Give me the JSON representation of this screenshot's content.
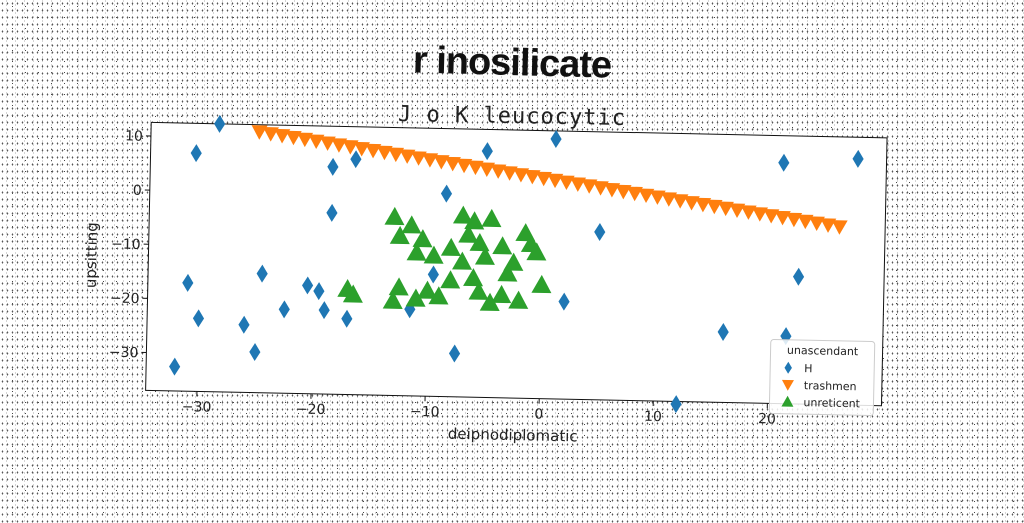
{
  "chart_data": {
    "type": "scatter",
    "title": "r inosilicate",
    "subtitle": "J o K leucocytic",
    "xlabel": "deipnodiplomatic",
    "ylabel": "upsitting",
    "xlim": [
      -34.5,
      30
    ],
    "ylim": [
      -37,
      12.5
    ],
    "xticks": [
      -30,
      -20,
      -10,
      0,
      10,
      20
    ],
    "yticks": [
      10,
      0,
      -10,
      -20,
      -30
    ],
    "grid": false,
    "legend": {
      "title": "unascendant",
      "placement": "lower-right"
    },
    "series": [
      {
        "name": "H",
        "marker": "diamond",
        "color": "#1f77b4",
        "points": [
          [
            -28.5,
            12.5
          ],
          [
            -30.5,
            7
          ],
          [
            -18.5,
            5
          ],
          [
            -16.5,
            6.5
          ],
          [
            -18.5,
            -3.5
          ],
          [
            -31,
            -17
          ],
          [
            -30,
            -23.5
          ],
          [
            -26,
            -24.5
          ],
          [
            -25,
            -29.5
          ],
          [
            -24.5,
            -15
          ],
          [
            -22.5,
            -21.5
          ],
          [
            -20.5,
            -17
          ],
          [
            -19.5,
            -18
          ],
          [
            -19,
            -21.5
          ],
          [
            -17,
            -23
          ],
          [
            -32,
            -32.5
          ],
          [
            -8.5,
            0.5
          ],
          [
            -9.5,
            -14.5
          ],
          [
            -11.5,
            -21
          ],
          [
            -7.5,
            -29
          ],
          [
            -5,
            8.5
          ],
          [
            1,
            11
          ],
          [
            2,
            -19
          ],
          [
            5,
            -6
          ],
          [
            16,
            -24
          ],
          [
            21,
            7.5
          ],
          [
            21.5,
            -24.5
          ],
          [
            22.5,
            -13.5
          ],
          [
            12,
            -37.5
          ],
          [
            27.5,
            8.5
          ]
        ]
      },
      {
        "name": "trashmen",
        "marker": "triangle-down",
        "color": "#ff7f0e",
        "points": [
          [
            -25,
            11.2
          ],
          [
            -24,
            10.9
          ],
          [
            -23,
            10.6
          ],
          [
            -22,
            10.3
          ],
          [
            -21,
            10.0
          ],
          [
            -20,
            9.7
          ],
          [
            -19,
            9.4
          ],
          [
            -18,
            9.1
          ],
          [
            -17,
            8.8
          ],
          [
            -16,
            8.5
          ],
          [
            -15,
            8.2
          ],
          [
            -14,
            7.9
          ],
          [
            -13,
            7.6
          ],
          [
            -12,
            7.3
          ],
          [
            -11,
            7.0
          ],
          [
            -10,
            6.7
          ],
          [
            -9,
            6.4
          ],
          [
            -8,
            6.1
          ],
          [
            -7,
            5.8
          ],
          [
            -6,
            5.5
          ],
          [
            -5,
            5.2
          ],
          [
            -4,
            4.9
          ],
          [
            -3,
            4.6
          ],
          [
            -2,
            4.3
          ],
          [
            -1,
            4.0
          ],
          [
            0,
            3.7
          ],
          [
            1,
            3.4
          ],
          [
            2,
            3.1
          ],
          [
            3,
            2.8
          ],
          [
            4,
            2.5
          ],
          [
            5,
            2.2
          ],
          [
            6,
            1.9
          ],
          [
            7,
            1.6
          ],
          [
            8,
            1.3
          ],
          [
            9,
            1.0
          ],
          [
            10,
            0.7
          ],
          [
            11,
            0.4
          ],
          [
            12,
            0.1
          ],
          [
            13,
            -0.2
          ],
          [
            14,
            -0.5
          ],
          [
            15,
            -0.8
          ],
          [
            16,
            -1.1
          ],
          [
            17,
            -1.4
          ],
          [
            18,
            -1.7
          ],
          [
            19,
            -2.0
          ],
          [
            20,
            -2.3
          ],
          [
            21,
            -2.6
          ],
          [
            22,
            -2.9
          ],
          [
            23,
            -3.2
          ],
          [
            24,
            -3.5
          ],
          [
            25,
            -3.8
          ],
          [
            26,
            -4.1
          ]
        ]
      },
      {
        "name": "unreticent",
        "marker": "triangle-up",
        "color": "#2ca02c",
        "points": [
          [
            -13,
            -4
          ],
          [
            -11.5,
            -5.5
          ],
          [
            -12.5,
            -7.5
          ],
          [
            -10.5,
            -8
          ],
          [
            -11,
            -10.5
          ],
          [
            -9.5,
            -11
          ],
          [
            -8,
            -9.5
          ],
          [
            -7,
            -3.5
          ],
          [
            -6,
            -4.5
          ],
          [
            -6.5,
            -7
          ],
          [
            -5.5,
            -8.5
          ],
          [
            -5,
            -11
          ],
          [
            -4.5,
            -4
          ],
          [
            -3.5,
            -9
          ],
          [
            -2.5,
            -12
          ],
          [
            -1.5,
            -6.5
          ],
          [
            -1,
            -8.5
          ],
          [
            -0.5,
            -10
          ],
          [
            -12.5,
            -17
          ],
          [
            -11,
            -19
          ],
          [
            -10,
            -17.5
          ],
          [
            -9,
            -18.5
          ],
          [
            -8,
            -15.5
          ],
          [
            -6,
            -15
          ],
          [
            -5.5,
            -17.5
          ],
          [
            -4.5,
            -19.5
          ],
          [
            -3.5,
            -18
          ],
          [
            -2,
            -19
          ],
          [
            0,
            -16
          ],
          [
            -13,
            -19.5
          ],
          [
            -17,
            -17.5
          ],
          [
            -16.5,
            -18.5
          ],
          [
            -7,
            -12
          ],
          [
            -3,
            -14
          ]
        ]
      }
    ]
  }
}
